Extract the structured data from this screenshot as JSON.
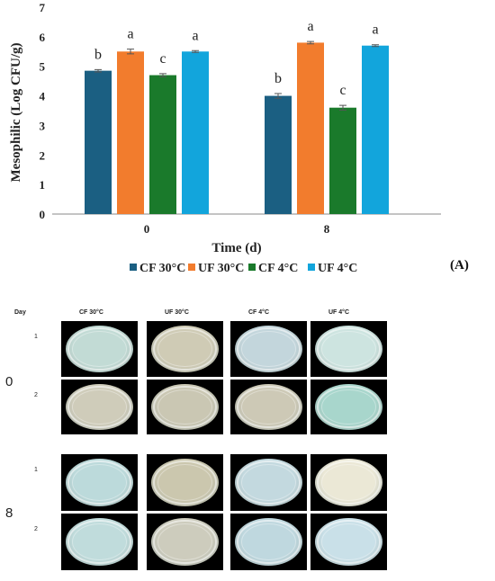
{
  "chart_data": {
    "type": "bar",
    "categories": [
      "0",
      "8"
    ],
    "series": [
      {
        "name": "CF 30°C",
        "color": "#1b5f82",
        "values": [
          4.85,
          4.0
        ],
        "errors": [
          0.04,
          0.08
        ],
        "letters": [
          "b",
          "b"
        ]
      },
      {
        "name": "UF 30°C",
        "color": "#f27c2d",
        "values": [
          5.5,
          5.8
        ],
        "errors": [
          0.08,
          0.04
        ],
        "letters": [
          "a",
          "a"
        ]
      },
      {
        "name": "CF 4°C",
        "color": "#1a7a2b",
        "values": [
          4.7,
          3.6
        ],
        "errors": [
          0.05,
          0.08
        ],
        "letters": [
          "c",
          "c"
        ]
      },
      {
        "name": "UF 4°C",
        "color": "#12a5dc",
        "values": [
          5.5,
          5.7
        ],
        "errors": [
          0.03,
          0.03
        ],
        "letters": [
          "a",
          "a"
        ]
      }
    ],
    "xlabel": "Time (d)",
    "ylabel": "Mesophilic (Log CFU/g)",
    "ylim": [
      0,
      7
    ],
    "yticks": [
      "0",
      "1",
      "2",
      "3",
      "4",
      "5",
      "6",
      "7"
    ],
    "grid": false,
    "legend_position": "bottom"
  },
  "panel_label": "(A)",
  "photo_grid": {
    "header": "Day",
    "columns": [
      "CF 30°C",
      "UF 30°C",
      "CF 4°C",
      "UF 4°C"
    ],
    "days": [
      "0",
      "8"
    ],
    "replicates": [
      "1",
      "2"
    ],
    "plate_colors": [
      [
        "#c2dbd5",
        "#cfcbb5",
        "#c3d6dc",
        "#cde4e0"
      ],
      [
        "#cfccba",
        "#cac7b3",
        "#cdc9b6",
        "#a8d6cc"
      ],
      [
        "#bcdadb",
        "#cbc7ae",
        "#c3d9df",
        "#ebe8d6"
      ],
      [
        "#c0dcdc",
        "#cdccbd",
        "#bfd8df",
        "#c9e0e8"
      ]
    ]
  }
}
